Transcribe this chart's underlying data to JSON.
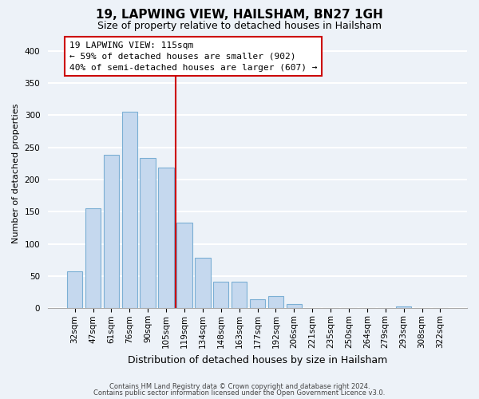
{
  "title": "19, LAPWING VIEW, HAILSHAM, BN27 1GH",
  "subtitle": "Size of property relative to detached houses in Hailsham",
  "xlabel": "Distribution of detached houses by size in Hailsham",
  "ylabel": "Number of detached properties",
  "bar_labels": [
    "32sqm",
    "47sqm",
    "61sqm",
    "76sqm",
    "90sqm",
    "105sqm",
    "119sqm",
    "134sqm",
    "148sqm",
    "163sqm",
    "177sqm",
    "192sqm",
    "206sqm",
    "221sqm",
    "235sqm",
    "250sqm",
    "264sqm",
    "279sqm",
    "293sqm",
    "308sqm",
    "322sqm"
  ],
  "bar_values": [
    57,
    155,
    238,
    305,
    233,
    219,
    133,
    78,
    41,
    41,
    14,
    19,
    7,
    0,
    0,
    0,
    0,
    0,
    3,
    0,
    0
  ],
  "ylim": [
    0,
    420
  ],
  "yticks": [
    0,
    50,
    100,
    150,
    200,
    250,
    300,
    350,
    400
  ],
  "bar_color": "#c5d8ee",
  "bar_edge_color": "#7bafd4",
  "vline_color": "#cc0000",
  "vline_x_idx": 6,
  "annotation_title": "19 LAPWING VIEW: 115sqm",
  "annotation_line1": "← 59% of detached houses are smaller (902)",
  "annotation_line2": "40% of semi-detached houses are larger (607) →",
  "box_facecolor": "white",
  "box_edgecolor": "#cc0000",
  "footer_line1": "Contains HM Land Registry data © Crown copyright and database right 2024.",
  "footer_line2": "Contains public sector information licensed under the Open Government Licence v3.0.",
  "background_color": "#edf2f8",
  "grid_color": "white",
  "title_fontsize": 11,
  "subtitle_fontsize": 9,
  "ylabel_fontsize": 8,
  "xlabel_fontsize": 9,
  "tick_fontsize": 7.5,
  "annot_fontsize": 8
}
